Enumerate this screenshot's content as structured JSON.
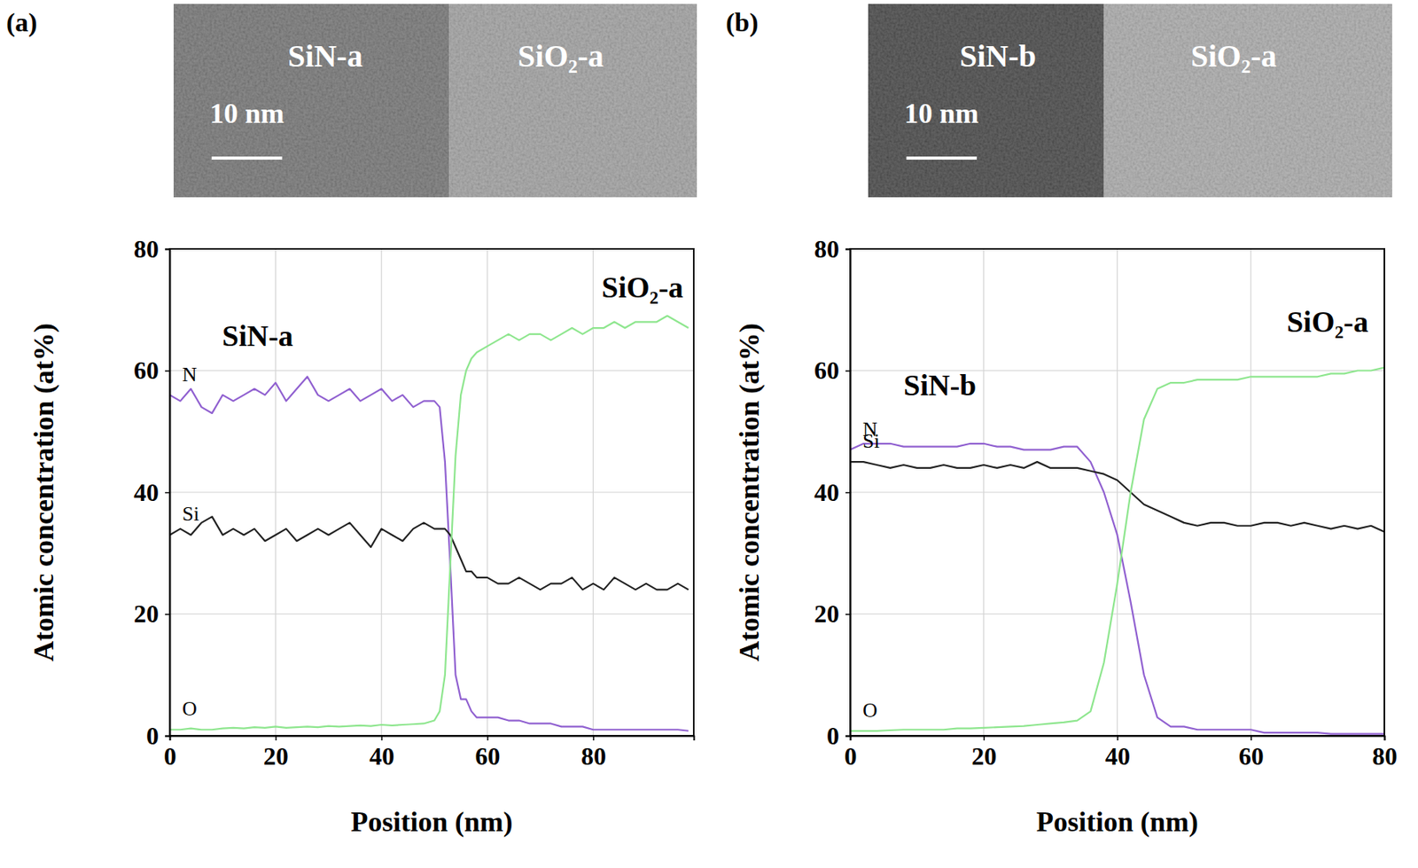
{
  "chart_data": [
    {
      "type": "line",
      "panel_label": "(a)",
      "image_labels": [
        "SiN-a",
        "SiO₂-a"
      ],
      "scale_bar": "10 nm",
      "annotations": [
        "SiN-a",
        "SiO₂-a"
      ],
      "x_label": "Position (nm)",
      "y_label": "Atomic concentration (at%)",
      "x": [
        0,
        2,
        4,
        6,
        8,
        10,
        12,
        14,
        16,
        18,
        20,
        22,
        24,
        26,
        28,
        30,
        32,
        34,
        36,
        38,
        40,
        42,
        44,
        46,
        48,
        50,
        51,
        52,
        53,
        54,
        55,
        56,
        57,
        58,
        60,
        62,
        64,
        66,
        68,
        70,
        72,
        74,
        76,
        78,
        80,
        82,
        84,
        86,
        88,
        90,
        92,
        94,
        96,
        98
      ],
      "series": [
        {
          "name": "N",
          "color": "#9060d0",
          "values": [
            56,
            55,
            57,
            54,
            53,
            56,
            55,
            56,
            57,
            56,
            58,
            55,
            57,
            59,
            56,
            55,
            56,
            57,
            55,
            56,
            57,
            55,
            56,
            54,
            55,
            55,
            54,
            45,
            28,
            10,
            6,
            6,
            4,
            3,
            3,
            3,
            2.5,
            2.5,
            2,
            2,
            2,
            1.5,
            1.5,
            1.5,
            1,
            1,
            1,
            1,
            1,
            1,
            1,
            1,
            1,
            0.8
          ]
        },
        {
          "name": "Si",
          "color": "#222222",
          "values": [
            33,
            34,
            33,
            35,
            36,
            33,
            34,
            33,
            34,
            32,
            33,
            34,
            32,
            33,
            34,
            33,
            34,
            35,
            33,
            31,
            34,
            33,
            32,
            34,
            35,
            34,
            34,
            34,
            33,
            31,
            29,
            27,
            27,
            26,
            26,
            25,
            25,
            26,
            25,
            24,
            25,
            25,
            26,
            24,
            25,
            24,
            26,
            25,
            24,
            25,
            24,
            24,
            25,
            24
          ]
        },
        {
          "name": "O",
          "color": "#8ee68e",
          "values": [
            1,
            1,
            1.2,
            1,
            1,
            1.2,
            1.3,
            1.2,
            1.4,
            1.3,
            1.5,
            1.3,
            1.4,
            1.5,
            1.4,
            1.6,
            1.5,
            1.6,
            1.7,
            1.6,
            1.8,
            1.7,
            1.8,
            1.9,
            2,
            2.5,
            4,
            10,
            28,
            46,
            56,
            60,
            62,
            63,
            64,
            65,
            66,
            65,
            66,
            66,
            65,
            66,
            67,
            66,
            67,
            67,
            68,
            67,
            68,
            68,
            68,
            69,
            68,
            67
          ]
        }
      ],
      "xlim": [
        0,
        99
      ],
      "xticks": [
        0,
        20,
        40,
        60,
        80
      ],
      "ylim": [
        0,
        80
      ],
      "yticks": [
        0,
        20,
        40,
        60,
        80
      ],
      "grid": true
    },
    {
      "type": "line",
      "panel_label": "(b)",
      "image_labels": [
        "SiN-b",
        "SiO₂-a"
      ],
      "scale_bar": "10 nm",
      "annotations": [
        "SiN-b",
        "SiO₂-a"
      ],
      "x_label": "Position (nm)",
      "y_label": "Atomic concentration (at%)",
      "x": [
        0,
        2,
        4,
        6,
        8,
        10,
        12,
        14,
        16,
        18,
        20,
        22,
        24,
        26,
        28,
        30,
        32,
        34,
        36,
        38,
        40,
        42,
        44,
        46,
        48,
        50,
        52,
        54,
        56,
        58,
        60,
        62,
        64,
        66,
        68,
        70,
        72,
        74,
        76,
        78,
        80
      ],
      "series": [
        {
          "name": "N",
          "color": "#9060d0",
          "values": [
            47,
            48,
            48,
            48,
            47.5,
            47.5,
            47.5,
            47.5,
            47.5,
            48,
            48,
            47.5,
            47.5,
            47,
            47,
            47,
            47.5,
            47.5,
            45,
            40,
            33,
            22,
            10,
            3,
            1.5,
            1.5,
            1,
            1,
            1,
            1,
            1,
            0.5,
            0.5,
            0.5,
            0.5,
            0.5,
            0.3,
            0.3,
            0.3,
            0.3,
            0.3
          ]
        },
        {
          "name": "Si",
          "color": "#222222",
          "values": [
            45,
            45,
            44.5,
            44,
            44.5,
            44,
            44,
            44.5,
            44,
            44,
            44.5,
            44,
            44.5,
            44,
            45,
            44,
            44,
            44,
            43.5,
            43,
            42,
            40,
            38,
            37,
            36,
            35,
            34.5,
            35,
            35,
            34.5,
            34.5,
            35,
            35,
            34.5,
            35,
            34.5,
            34,
            34.5,
            34,
            34.5,
            33.5
          ]
        },
        {
          "name": "O",
          "color": "#8ee68e",
          "values": [
            0.8,
            0.8,
            0.8,
            0.9,
            1,
            1,
            1,
            1,
            1.2,
            1.2,
            1.3,
            1.4,
            1.5,
            1.6,
            1.8,
            2,
            2.2,
            2.5,
            4,
            12,
            25,
            40,
            52,
            57,
            58,
            58,
            58.5,
            58.5,
            58.5,
            58.5,
            59,
            59,
            59,
            59,
            59,
            59,
            59.5,
            59.5,
            60,
            60,
            60.5
          ]
        }
      ],
      "xlim": [
        0,
        80
      ],
      "xticks": [
        0,
        20,
        40,
        60,
        80
      ],
      "ylim": [
        0,
        80
      ],
      "yticks": [
        0,
        20,
        40,
        60,
        80
      ],
      "grid": true
    }
  ]
}
